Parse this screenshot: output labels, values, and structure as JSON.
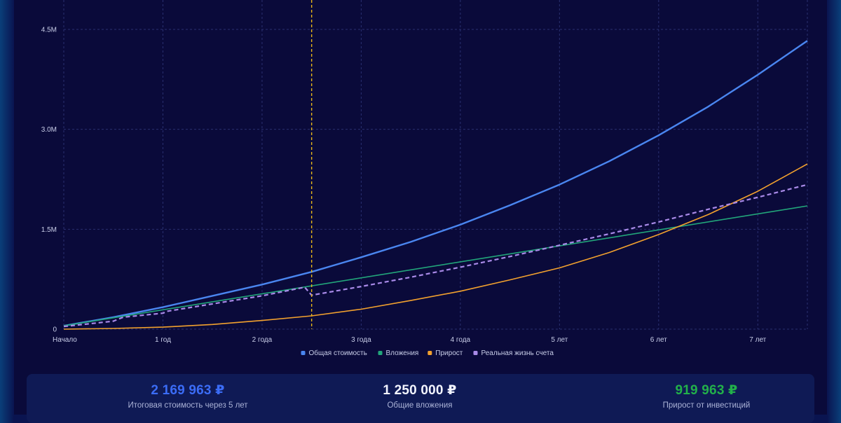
{
  "chart_data": {
    "type": "line",
    "x_ticks": [
      "Начало",
      "1 год",
      "2 года",
      "3 года",
      "4 года",
      "5 лет",
      "6 лет",
      "7 лет"
    ],
    "y_ticks": [
      "0",
      "1.5M",
      "3.0M",
      "4.5M"
    ],
    "y_tick_values": [
      0,
      1500000,
      3000000,
      4500000
    ],
    "xlim": [
      0,
      7.5
    ],
    "ylim": [
      0,
      4500000
    ],
    "grid": true,
    "legend_position": "bottom",
    "marker_x": 2.5,
    "marker_color": "#e5b41a",
    "series": [
      {
        "name": "Общая стоимость",
        "color": "#4a86f0",
        "dashed": false,
        "x": [
          0,
          0.5,
          1,
          1.5,
          2,
          2.5,
          3,
          3.5,
          4,
          4.5,
          5,
          5.5,
          6,
          6.5,
          7,
          7.5
        ],
        "y": [
          50000,
          180000,
          330000,
          500000,
          670000,
          860000,
          1080000,
          1310000,
          1570000,
          1860000,
          2170000,
          2520000,
          2910000,
          3340000,
          3820000,
          4330000
        ]
      },
      {
        "name": "Вложения",
        "color": "#22a67a",
        "dashed": false,
        "x": [
          0,
          7.5
        ],
        "y": [
          50000,
          1850000
        ]
      },
      {
        "name": "Прирост",
        "color": "#f2a12e",
        "dashed": false,
        "x": [
          0,
          0.5,
          1,
          1.5,
          2,
          2.5,
          3,
          3.5,
          4,
          4.5,
          5,
          5.5,
          6,
          6.5,
          7,
          7.5
        ],
        "y": [
          0,
          10000,
          30000,
          70000,
          130000,
          200000,
          300000,
          430000,
          570000,
          740000,
          920000,
          1150000,
          1420000,
          1720000,
          2070000,
          2480000
        ]
      },
      {
        "name": "Реальная жизнь счета",
        "color": "#a98ae8",
        "dashed": true,
        "x": [
          0,
          0.5,
          0.6,
          1,
          1.05,
          1.5,
          2,
          2.43,
          2.5,
          3,
          3.5,
          4,
          4.5,
          5,
          5.5,
          6,
          6.5,
          7,
          7.5
        ],
        "y": [
          40000,
          120000,
          180000,
          240000,
          270000,
          380000,
          500000,
          630000,
          510000,
          640000,
          780000,
          930000,
          1090000,
          1260000,
          1430000,
          1610000,
          1800000,
          1980000,
          2170000
        ]
      }
    ]
  },
  "summary": {
    "total_value": "2 169 963 ₽",
    "total_label": "Итоговая стоимость через 5 лет",
    "invest_value": "1 250 000 ₽",
    "invest_label": "Общие вложения",
    "growth_value": "919 963 ₽",
    "growth_label": "Прирост от инвестиций"
  }
}
